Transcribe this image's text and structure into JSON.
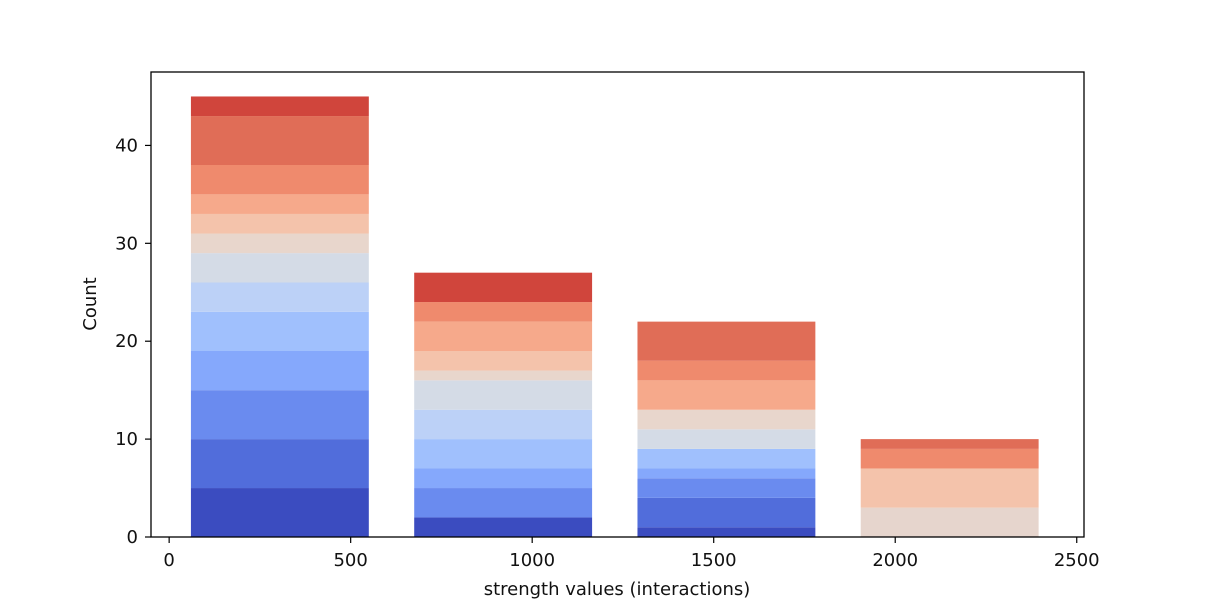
{
  "chart_data": {
    "type": "bar",
    "stacked": true,
    "xlabel": "strength values",
    "xlabel_suffix": "(interactions)",
    "ylabel": "Count",
    "xlim": [
      -50,
      2520
    ],
    "ylim": [
      0,
      47.5
    ],
    "xticks": [
      0,
      500,
      1000,
      1500,
      2000,
      2500
    ],
    "yticks": [
      0,
      10,
      20,
      30,
      40
    ],
    "grid": false,
    "bars": [
      {
        "x_start": 60,
        "x_end": 550,
        "total": 45,
        "segments": [
          {
            "value": 5,
            "color": "#3b4cc0"
          },
          {
            "value": 5,
            "color": "#516ddb"
          },
          {
            "value": 5,
            "color": "#6a8bef"
          },
          {
            "value": 4,
            "color": "#85a8fc"
          },
          {
            "value": 4,
            "color": "#a0c0fd"
          },
          {
            "value": 3,
            "color": "#bcd1f7"
          },
          {
            "value": 3,
            "color": "#d4dbe6"
          },
          {
            "value": 2,
            "color": "#e8d6cc"
          },
          {
            "value": 2,
            "color": "#f4c3ab"
          },
          {
            "value": 2,
            "color": "#f6a98b"
          },
          {
            "value": 3,
            "color": "#ef8a6d"
          },
          {
            "value": 5,
            "color": "#e06d57"
          },
          {
            "value": 2,
            "color": "#d0453c"
          }
        ]
      },
      {
        "x_start": 675,
        "x_end": 1165,
        "total": 27,
        "segments": [
          {
            "value": 2,
            "color": "#3b4cc0"
          },
          {
            "value": 3,
            "color": "#6a8bef"
          },
          {
            "value": 2,
            "color": "#85a8fc"
          },
          {
            "value": 3,
            "color": "#a0c0fd"
          },
          {
            "value": 3,
            "color": "#bcd1f7"
          },
          {
            "value": 3,
            "color": "#d4dbe6"
          },
          {
            "value": 1,
            "color": "#e8d6cc"
          },
          {
            "value": 2,
            "color": "#f4c3ab"
          },
          {
            "value": 3,
            "color": "#f6a98b"
          },
          {
            "value": 2,
            "color": "#ef8a6d"
          },
          {
            "value": 3,
            "color": "#d0453c"
          }
        ]
      },
      {
        "x_start": 1290,
        "x_end": 1780,
        "total": 22,
        "segments": [
          {
            "value": 1,
            "color": "#3b4cc0"
          },
          {
            "value": 3,
            "color": "#516ddb"
          },
          {
            "value": 2,
            "color": "#6a8bef"
          },
          {
            "value": 1,
            "color": "#85a8fc"
          },
          {
            "value": 2,
            "color": "#a0c0fd"
          },
          {
            "value": 2,
            "color": "#d4dbe6"
          },
          {
            "value": 2,
            "color": "#e8d6cc"
          },
          {
            "value": 3,
            "color": "#f6a98b"
          },
          {
            "value": 2,
            "color": "#ef8a6d"
          },
          {
            "value": 4,
            "color": "#e06d57"
          }
        ]
      },
      {
        "x_start": 1905,
        "x_end": 2395,
        "total": 10,
        "segments": [
          {
            "value": 3,
            "color": "#e6d5cd"
          },
          {
            "value": 4,
            "color": "#f4c3ab"
          },
          {
            "value": 2,
            "color": "#ef8a6d"
          },
          {
            "value": 1,
            "color": "#e06d57"
          }
        ]
      }
    ]
  }
}
